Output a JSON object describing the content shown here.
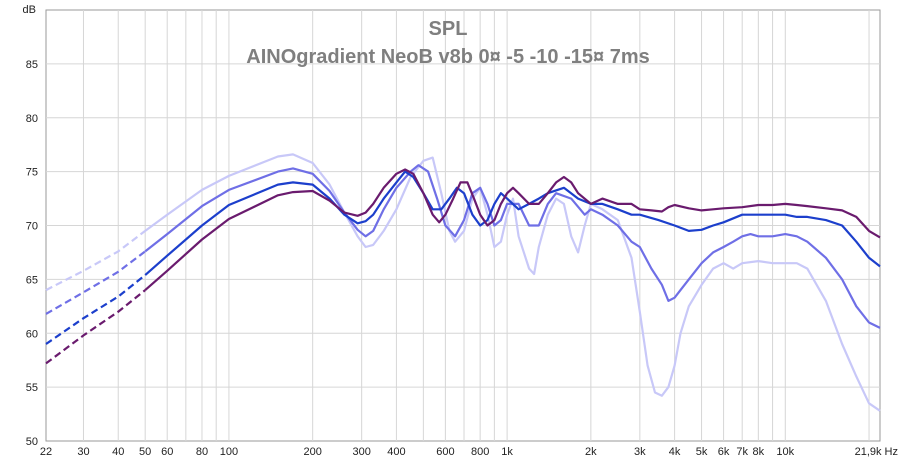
{
  "chart_data": {
    "type": "line",
    "title": "SPL",
    "subtitle": "AINOgradient NeoB v8b 0¤ -5 -10 -15¤ 7ms",
    "x_unit": "Hz",
    "y_unit": "dB",
    "x_scale": "log",
    "xlim": [
      22,
      21900
    ],
    "ylim": [
      50,
      90
    ],
    "grid": true,
    "legend": "none",
    "y_ticks": [
      50,
      55,
      60,
      65,
      70,
      75,
      80,
      85
    ],
    "x_ticks": [
      {
        "v": 22,
        "label": "22"
      },
      {
        "v": 30,
        "label": "30"
      },
      {
        "v": 40,
        "label": "40"
      },
      {
        "v": 50,
        "label": "50"
      },
      {
        "v": 60,
        "label": "60"
      },
      {
        "v": 80,
        "label": "80"
      },
      {
        "v": 100,
        "label": "100"
      },
      {
        "v": 200,
        "label": "200"
      },
      {
        "v": 300,
        "label": "300"
      },
      {
        "v": 400,
        "label": "400"
      },
      {
        "v": 600,
        "label": "600"
      },
      {
        "v": 800,
        "label": "800"
      },
      {
        "v": 1000,
        "label": "1k"
      },
      {
        "v": 2000,
        "label": "2k"
      },
      {
        "v": 3000,
        "label": "3k"
      },
      {
        "v": 4000,
        "label": "4k"
      },
      {
        "v": 5000,
        "label": "5k"
      },
      {
        "v": 6000,
        "label": "6k"
      },
      {
        "v": 7000,
        "label": "7k"
      },
      {
        "v": 8000,
        "label": "8k"
      },
      {
        "v": 10000,
        "label": "10k"
      },
      {
        "v": 21900,
        "label": "21,9k Hz"
      }
    ],
    "dashed_below_hz": 50,
    "series": [
      {
        "color": "#c8c8f8",
        "points": [
          [
            22,
            64
          ],
          [
            30,
            65.8
          ],
          [
            40,
            67.6
          ],
          [
            50,
            69.5
          ],
          [
            60,
            71
          ],
          [
            80,
            73.3
          ],
          [
            100,
            74.6
          ],
          [
            150,
            76.4
          ],
          [
            170,
            76.6
          ],
          [
            200,
            75.8
          ],
          [
            230,
            73.8
          ],
          [
            260,
            71.2
          ],
          [
            290,
            69
          ],
          [
            310,
            68
          ],
          [
            330,
            68.2
          ],
          [
            360,
            69.5
          ],
          [
            400,
            71.5
          ],
          [
            450,
            74.5
          ],
          [
            500,
            76
          ],
          [
            540,
            76.3
          ],
          [
            580,
            73
          ],
          [
            620,
            69.5
          ],
          [
            650,
            68.5
          ],
          [
            700,
            69.5
          ],
          [
            750,
            72.5
          ],
          [
            800,
            73.5
          ],
          [
            850,
            71
          ],
          [
            900,
            68
          ],
          [
            950,
            68.5
          ],
          [
            1000,
            71
          ],
          [
            1050,
            72.5
          ],
          [
            1100,
            69
          ],
          [
            1200,
            66
          ],
          [
            1250,
            65.5
          ],
          [
            1300,
            68
          ],
          [
            1400,
            71
          ],
          [
            1500,
            72.5
          ],
          [
            1600,
            72
          ],
          [
            1700,
            69
          ],
          [
            1800,
            67.5
          ],
          [
            1900,
            70
          ],
          [
            2000,
            72
          ],
          [
            2200,
            71.5
          ],
          [
            2500,
            70.5
          ],
          [
            2800,
            67
          ],
          [
            3000,
            62
          ],
          [
            3200,
            57
          ],
          [
            3400,
            54.5
          ],
          [
            3600,
            54.2
          ],
          [
            3800,
            55
          ],
          [
            4000,
            57
          ],
          [
            4200,
            60
          ],
          [
            4500,
            62.5
          ],
          [
            5000,
            64.5
          ],
          [
            5500,
            66
          ],
          [
            6000,
            66.5
          ],
          [
            6500,
            66
          ],
          [
            7000,
            66.5
          ],
          [
            8000,
            66.7
          ],
          [
            9000,
            66.5
          ],
          [
            10000,
            66.5
          ],
          [
            11000,
            66.5
          ],
          [
            12000,
            66
          ],
          [
            14000,
            63
          ],
          [
            16000,
            59
          ],
          [
            18000,
            56
          ],
          [
            20000,
            53.5
          ],
          [
            21900,
            52.8
          ]
        ]
      },
      {
        "color": "#6f6fe6",
        "points": [
          [
            22,
            61.8
          ],
          [
            30,
            63.8
          ],
          [
            40,
            65.7
          ],
          [
            50,
            67.6
          ],
          [
            60,
            69.2
          ],
          [
            80,
            71.8
          ],
          [
            100,
            73.3
          ],
          [
            150,
            75
          ],
          [
            170,
            75.3
          ],
          [
            200,
            74.8
          ],
          [
            230,
            73.2
          ],
          [
            260,
            71.2
          ],
          [
            290,
            69.6
          ],
          [
            310,
            69
          ],
          [
            330,
            69.5
          ],
          [
            360,
            71.5
          ],
          [
            400,
            73.5
          ],
          [
            450,
            75
          ],
          [
            480,
            75.6
          ],
          [
            520,
            75
          ],
          [
            560,
            72.5
          ],
          [
            600,
            70
          ],
          [
            650,
            69
          ],
          [
            700,
            70.5
          ],
          [
            750,
            73
          ],
          [
            800,
            73.5
          ],
          [
            850,
            72
          ],
          [
            900,
            70
          ],
          [
            950,
            70.5
          ],
          [
            1000,
            72
          ],
          [
            1100,
            72
          ],
          [
            1200,
            70
          ],
          [
            1300,
            70
          ],
          [
            1400,
            72
          ],
          [
            1500,
            73
          ],
          [
            1700,
            72.5
          ],
          [
            1900,
            71
          ],
          [
            2000,
            71.5
          ],
          [
            2200,
            71
          ],
          [
            2500,
            70
          ],
          [
            2800,
            68.5
          ],
          [
            3000,
            68
          ],
          [
            3300,
            66
          ],
          [
            3600,
            64.5
          ],
          [
            3800,
            63
          ],
          [
            4000,
            63.3
          ],
          [
            4200,
            64
          ],
          [
            4500,
            65
          ],
          [
            5000,
            66.5
          ],
          [
            5500,
            67.5
          ],
          [
            6000,
            68
          ],
          [
            6500,
            68.5
          ],
          [
            7000,
            69
          ],
          [
            7500,
            69.2
          ],
          [
            8000,
            69
          ],
          [
            9000,
            69
          ],
          [
            10000,
            69.2
          ],
          [
            11000,
            69
          ],
          [
            12000,
            68.5
          ],
          [
            14000,
            67
          ],
          [
            16000,
            65
          ],
          [
            18000,
            62.5
          ],
          [
            20000,
            61
          ],
          [
            21900,
            60.5
          ]
        ]
      },
      {
        "color": "#1c3fcc",
        "points": [
          [
            22,
            59
          ],
          [
            30,
            61.4
          ],
          [
            40,
            63.4
          ],
          [
            50,
            65.4
          ],
          [
            60,
            67.2
          ],
          [
            80,
            70
          ],
          [
            100,
            71.9
          ],
          [
            150,
            73.8
          ],
          [
            170,
            74
          ],
          [
            200,
            73.8
          ],
          [
            230,
            72.5
          ],
          [
            260,
            71
          ],
          [
            290,
            70.2
          ],
          [
            310,
            70.4
          ],
          [
            330,
            71
          ],
          [
            360,
            72.5
          ],
          [
            400,
            74
          ],
          [
            430,
            75
          ],
          [
            460,
            74.5
          ],
          [
            500,
            73
          ],
          [
            540,
            71.5
          ],
          [
            580,
            71.5
          ],
          [
            620,
            72.5
          ],
          [
            660,
            73.5
          ],
          [
            700,
            73
          ],
          [
            750,
            71
          ],
          [
            800,
            70
          ],
          [
            850,
            70.5
          ],
          [
            900,
            72
          ],
          [
            950,
            73
          ],
          [
            1000,
            72.5
          ],
          [
            1100,
            71.5
          ],
          [
            1200,
            72
          ],
          [
            1300,
            72.5
          ],
          [
            1400,
            73
          ],
          [
            1600,
            73.5
          ],
          [
            1800,
            72.5
          ],
          [
            2000,
            72
          ],
          [
            2200,
            72
          ],
          [
            2500,
            71.5
          ],
          [
            2800,
            71
          ],
          [
            3000,
            71
          ],
          [
            3500,
            70.5
          ],
          [
            4000,
            70
          ],
          [
            4500,
            69.5
          ],
          [
            5000,
            69.6
          ],
          [
            5500,
            70
          ],
          [
            6000,
            70.3
          ],
          [
            7000,
            71
          ],
          [
            8000,
            71
          ],
          [
            9000,
            71
          ],
          [
            10000,
            71
          ],
          [
            11000,
            70.8
          ],
          [
            12000,
            70.8
          ],
          [
            14000,
            70.5
          ],
          [
            16000,
            70
          ],
          [
            18000,
            68.5
          ],
          [
            20000,
            67
          ],
          [
            21900,
            66.2
          ]
        ]
      },
      {
        "color": "#6a1b6e",
        "points": [
          [
            22,
            57.2
          ],
          [
            30,
            59.8
          ],
          [
            40,
            62
          ],
          [
            50,
            64
          ],
          [
            60,
            65.8
          ],
          [
            80,
            68.7
          ],
          [
            100,
            70.6
          ],
          [
            150,
            72.8
          ],
          [
            170,
            73.1
          ],
          [
            200,
            73.2
          ],
          [
            230,
            72.3
          ],
          [
            260,
            71.2
          ],
          [
            290,
            70.9
          ],
          [
            310,
            71.2
          ],
          [
            330,
            72
          ],
          [
            360,
            73.5
          ],
          [
            400,
            74.8
          ],
          [
            430,
            75.2
          ],
          [
            460,
            74.8
          ],
          [
            500,
            73
          ],
          [
            540,
            71
          ],
          [
            570,
            70.3
          ],
          [
            600,
            71
          ],
          [
            640,
            72.5
          ],
          [
            680,
            74
          ],
          [
            720,
            74
          ],
          [
            760,
            72.5
          ],
          [
            800,
            71
          ],
          [
            850,
            70
          ],
          [
            900,
            70.5
          ],
          [
            950,
            72
          ],
          [
            1000,
            73
          ],
          [
            1050,
            73.5
          ],
          [
            1100,
            73
          ],
          [
            1200,
            72
          ],
          [
            1300,
            72
          ],
          [
            1400,
            73
          ],
          [
            1500,
            74
          ],
          [
            1600,
            74.5
          ],
          [
            1700,
            74
          ],
          [
            1800,
            73
          ],
          [
            2000,
            72
          ],
          [
            2200,
            72.5
          ],
          [
            2500,
            72
          ],
          [
            2800,
            72
          ],
          [
            3000,
            71.5
          ],
          [
            3300,
            71.4
          ],
          [
            3600,
            71.3
          ],
          [
            3800,
            71.7
          ],
          [
            4000,
            71.9
          ],
          [
            4500,
            71.6
          ],
          [
            5000,
            71.4
          ],
          [
            5500,
            71.5
          ],
          [
            6000,
            71.6
          ],
          [
            7000,
            71.7
          ],
          [
            8000,
            71.9
          ],
          [
            9000,
            71.9
          ],
          [
            10000,
            72
          ],
          [
            11000,
            71.9
          ],
          [
            12000,
            71.8
          ],
          [
            14000,
            71.6
          ],
          [
            16000,
            71.4
          ],
          [
            18000,
            70.8
          ],
          [
            20000,
            69.5
          ],
          [
            21900,
            68.9
          ]
        ]
      }
    ]
  }
}
